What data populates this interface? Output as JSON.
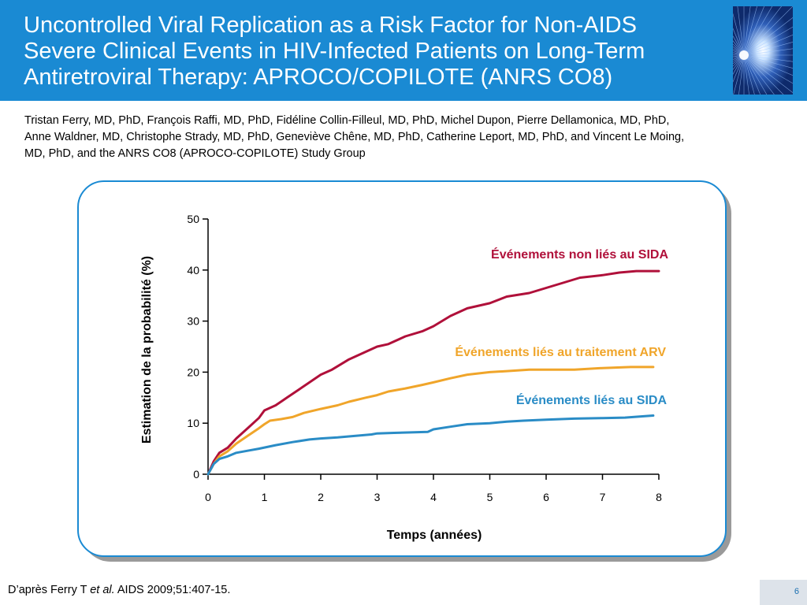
{
  "slide": {
    "title_lines": [
      "Uncontrolled Viral Replication as a Risk Factor for Non-AIDS",
      "Severe Clinical Events in HIV-Infected Patients on Long-Term",
      "Antiretroviral Therapy: APROCO/COPILOTE (ANRS CO8)"
    ],
    "author_lines": [
      "Tristan Ferry, MD, PhD, François Raffi, MD, PhD, Fidéline Collin-Filleul, MD, PhD, Michel Dupon, Pierre Dellamonica, MD, PhD,",
      "Anne Waldner, MD, Christophe Strady, MD, PhD, Geneviève Chêne, MD, PhD, Catherine Leport, MD, PhD, and Vincent Le Moing,",
      "MD, PhD, and the ANRS CO8 (APROCO-COPILOTE) Study Group"
    ],
    "reference": {
      "prefix": "D’après Ferry T ",
      "italic": "et al.",
      "suffix": " AIDS 2009;51:407-15."
    },
    "page_number": "6",
    "colors": {
      "header": "#1a8ad3",
      "panel_border": "#1a8ad3",
      "page_box": "#dde3ea"
    },
    "logo_icon": "starburst-logo-icon"
  },
  "chart_data": {
    "type": "line",
    "xlabel": "Temps (années)",
    "ylabel": "Estimation de la probabilité (%)",
    "xlim": [
      0,
      8
    ],
    "ylim": [
      0,
      50
    ],
    "x_ticks": [
      "0",
      "1",
      "2",
      "3",
      "4",
      "5",
      "6",
      "7",
      "8"
    ],
    "y_ticks": [
      "0",
      "10",
      "20",
      "30",
      "40",
      "50"
    ],
    "grid": false,
    "series": [
      {
        "name": "Événements non liés au SIDA",
        "color": "#b0103a",
        "points": [
          [
            0,
            0
          ],
          [
            0.1,
            2.5
          ],
          [
            0.2,
            4.2
          ],
          [
            0.35,
            5.2
          ],
          [
            0.5,
            7.0
          ],
          [
            0.7,
            9.0
          ],
          [
            0.9,
            11.0
          ],
          [
            1.0,
            12.5
          ],
          [
            1.2,
            13.5
          ],
          [
            1.4,
            15.0
          ],
          [
            1.6,
            16.5
          ],
          [
            1.8,
            18.0
          ],
          [
            2.0,
            19.5
          ],
          [
            2.2,
            20.5
          ],
          [
            2.5,
            22.5
          ],
          [
            2.8,
            24.0
          ],
          [
            3.0,
            25.0
          ],
          [
            3.2,
            25.5
          ],
          [
            3.5,
            27.0
          ],
          [
            3.8,
            28.0
          ],
          [
            4.0,
            29.0
          ],
          [
            4.3,
            31.0
          ],
          [
            4.6,
            32.5
          ],
          [
            5.0,
            33.5
          ],
          [
            5.3,
            34.8
          ],
          [
            5.7,
            35.5
          ],
          [
            6.0,
            36.5
          ],
          [
            6.3,
            37.5
          ],
          [
            6.6,
            38.5
          ],
          [
            7.0,
            39.0
          ],
          [
            7.3,
            39.5
          ],
          [
            7.6,
            39.8
          ],
          [
            8.0,
            39.8
          ]
        ]
      },
      {
        "name": "Événements liés au traitement ARV",
        "color": "#f0a52a",
        "points": [
          [
            0,
            0
          ],
          [
            0.1,
            2.0
          ],
          [
            0.2,
            3.5
          ],
          [
            0.35,
            4.5
          ],
          [
            0.5,
            6.0
          ],
          [
            0.7,
            7.5
          ],
          [
            0.9,
            9.0
          ],
          [
            1.0,
            9.8
          ],
          [
            1.1,
            10.5
          ],
          [
            1.3,
            10.8
          ],
          [
            1.5,
            11.2
          ],
          [
            1.7,
            12.0
          ],
          [
            2.0,
            12.8
          ],
          [
            2.3,
            13.5
          ],
          [
            2.5,
            14.2
          ],
          [
            2.8,
            15.0
          ],
          [
            3.0,
            15.5
          ],
          [
            3.2,
            16.2
          ],
          [
            3.5,
            16.8
          ],
          [
            3.8,
            17.5
          ],
          [
            4.0,
            18.0
          ],
          [
            4.3,
            18.8
          ],
          [
            4.6,
            19.5
          ],
          [
            5.0,
            20.0
          ],
          [
            5.3,
            20.2
          ],
          [
            5.7,
            20.5
          ],
          [
            6.0,
            20.5
          ],
          [
            6.5,
            20.5
          ],
          [
            7.0,
            20.8
          ],
          [
            7.5,
            21.0
          ],
          [
            7.9,
            21.0
          ]
        ]
      },
      {
        "name": "Événements liés au SIDA",
        "color": "#2a8cc6",
        "points": [
          [
            0,
            0
          ],
          [
            0.1,
            2.0
          ],
          [
            0.2,
            3.0
          ],
          [
            0.35,
            3.5
          ],
          [
            0.5,
            4.2
          ],
          [
            0.7,
            4.6
          ],
          [
            0.9,
            5.0
          ],
          [
            1.2,
            5.7
          ],
          [
            1.5,
            6.3
          ],
          [
            1.8,
            6.8
          ],
          [
            2.0,
            7.0
          ],
          [
            2.3,
            7.2
          ],
          [
            2.6,
            7.5
          ],
          [
            2.9,
            7.8
          ],
          [
            3.0,
            8.0
          ],
          [
            3.3,
            8.1
          ],
          [
            3.6,
            8.2
          ],
          [
            3.9,
            8.3
          ],
          [
            4.0,
            8.8
          ],
          [
            4.3,
            9.3
          ],
          [
            4.6,
            9.8
          ],
          [
            5.0,
            10.0
          ],
          [
            5.3,
            10.3
          ],
          [
            5.6,
            10.5
          ],
          [
            6.0,
            10.7
          ],
          [
            6.5,
            10.9
          ],
          [
            7.0,
            11.0
          ],
          [
            7.4,
            11.1
          ],
          [
            7.9,
            11.5
          ]
        ]
      }
    ],
    "series_labels": [
      {
        "text": "Événements non liés au SIDA",
        "color": "#b0103a"
      },
      {
        "text": "Événements liés au traitement ARV",
        "color": "#f0a52a"
      },
      {
        "text": "Événements liés au SIDA",
        "color": "#2a8cc6"
      }
    ]
  }
}
